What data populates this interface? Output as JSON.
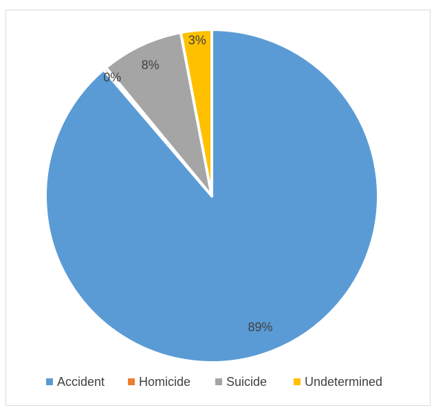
{
  "chart_data": {
    "type": "pie",
    "categories": [
      "Accident",
      "Homicide",
      "Suicide",
      "Undetermined"
    ],
    "values": [
      89,
      0.3,
      8,
      3
    ],
    "data_labels": [
      "89%",
      "0%",
      "8%",
      "3%"
    ],
    "colors": [
      "#5B9BD5",
      "#ED7D31",
      "#A5A5A5",
      "#FFC000"
    ],
    "start_angle_deg": 0,
    "direction": "clockwise",
    "legend_position": "bottom"
  }
}
